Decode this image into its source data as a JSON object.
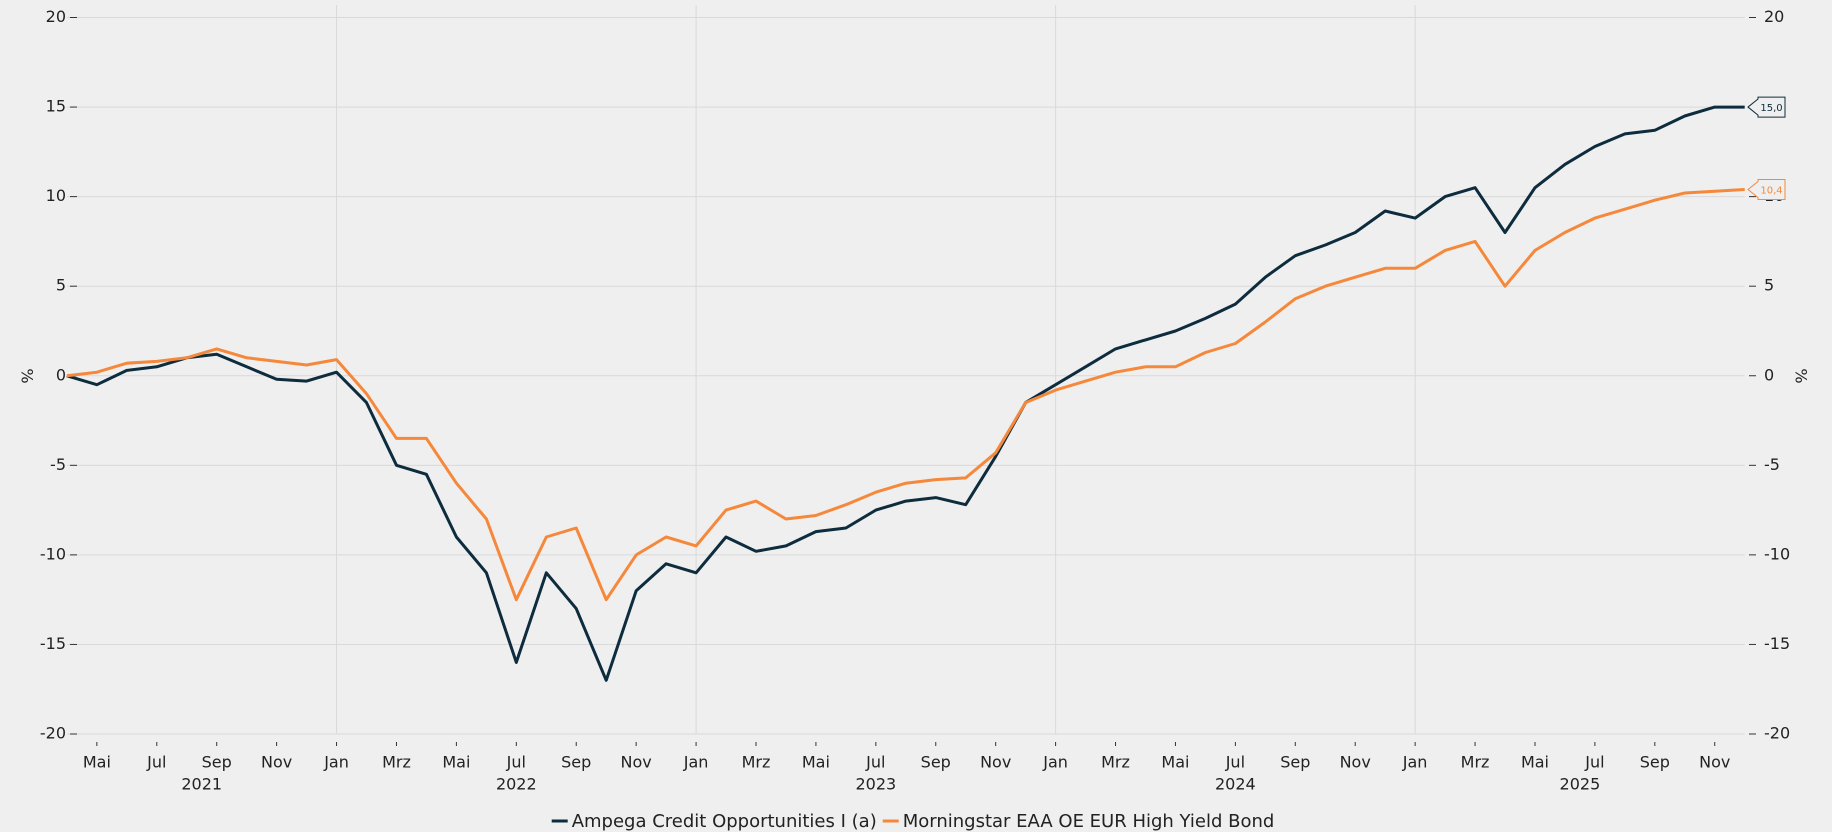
{
  "chart_data": {
    "type": "line",
    "ylabel": "%",
    "y2label": "%",
    "x": [
      "2021-04",
      "2021-05",
      "2021-06",
      "2021-07",
      "2021-08",
      "2021-09",
      "2021-10",
      "2021-11",
      "2021-12",
      "2022-01",
      "2022-02",
      "2022-03",
      "2022-04",
      "2022-05",
      "2022-06",
      "2022-07",
      "2022-08",
      "2022-09",
      "2022-10",
      "2022-11",
      "2022-12",
      "2023-01",
      "2023-02",
      "2023-03",
      "2023-04",
      "2023-05",
      "2023-06",
      "2023-07",
      "2023-08",
      "2023-09",
      "2023-10",
      "2023-11",
      "2023-12",
      "2024-01",
      "2024-02",
      "2024-03",
      "2024-04",
      "2024-05",
      "2024-06",
      "2024-07",
      "2024-08",
      "2024-09",
      "2024-10",
      "2024-11",
      "2024-12",
      "2025-01",
      "2025-02",
      "2025-03",
      "2025-04",
      "2025-05",
      "2025-06",
      "2025-07",
      "2025-08",
      "2025-09",
      "2025-10",
      "2025-11",
      "2025-12"
    ],
    "xlim": [
      "2021-04",
      "2025-12"
    ],
    "xticks": [
      {
        "value": "2021-05",
        "label": "Mai"
      },
      {
        "value": "2021-07",
        "label": "Jul"
      },
      {
        "value": "2021-09",
        "label": "Sep"
      },
      {
        "value": "2021-11",
        "label": "Nov"
      },
      {
        "value": "2022-01",
        "label": "Jan"
      },
      {
        "value": "2022-03",
        "label": "Mrz"
      },
      {
        "value": "2022-05",
        "label": "Mai"
      },
      {
        "value": "2022-07",
        "label": "Jul"
      },
      {
        "value": "2022-09",
        "label": "Sep"
      },
      {
        "value": "2022-11",
        "label": "Nov"
      },
      {
        "value": "2023-01",
        "label": "Jan"
      },
      {
        "value": "2023-03",
        "label": "Mrz"
      },
      {
        "value": "2023-05",
        "label": "Mai"
      },
      {
        "value": "2023-07",
        "label": "Jul"
      },
      {
        "value": "2023-09",
        "label": "Sep"
      },
      {
        "value": "2023-11",
        "label": "Nov"
      },
      {
        "value": "2024-01",
        "label": "Jan"
      },
      {
        "value": "2024-03",
        "label": "Mrz"
      },
      {
        "value": "2024-05",
        "label": "Mai"
      },
      {
        "value": "2024-07",
        "label": "Jul"
      },
      {
        "value": "2024-09",
        "label": "Sep"
      },
      {
        "value": "2024-11",
        "label": "Nov"
      },
      {
        "value": "2025-01",
        "label": "Jan"
      },
      {
        "value": "2025-03",
        "label": "Mrz"
      },
      {
        "value": "2025-05",
        "label": "Mai"
      },
      {
        "value": "2025-07",
        "label": "Jul"
      },
      {
        "value": "2025-09",
        "label": "Sep"
      },
      {
        "value": "2025-11",
        "label": "Nov"
      }
    ],
    "years": [
      "2021",
      "2022",
      "2023",
      "2024",
      "2025"
    ],
    "ylim": [
      -20,
      20
    ],
    "yticks": [
      -20,
      -15,
      -10,
      -5,
      0,
      5,
      10,
      15,
      20
    ],
    "y2lim": [
      -20,
      20
    ],
    "y2ticks": [
      -20,
      -15,
      -10,
      -5,
      0,
      5,
      10,
      15,
      20
    ],
    "grid": true,
    "legend": "bottom",
    "series": [
      {
        "name": "Ampega Credit Opportunities I (a)",
        "color": "#0d2c3d",
        "values": [
          0,
          -0.5,
          0.3,
          0.5,
          1.0,
          1.2,
          0.5,
          -0.2,
          -0.3,
          0.2,
          -1.5,
          -5,
          -5.5,
          -9,
          -11,
          -16,
          -11,
          -13,
          -17,
          -12,
          -10.5,
          -11,
          -9,
          -9.8,
          -9.5,
          -8.7,
          -8.5,
          -7.5,
          -7,
          -6.8,
          -7.2,
          -4.5,
          -1.5,
          -0.5,
          0.5,
          1.5,
          2,
          2.5,
          3.2,
          4,
          5.5,
          6.7,
          7.3,
          8,
          9.2,
          8.8,
          10,
          10.5,
          8,
          10.5,
          11.8,
          12.8,
          13.5,
          13.7,
          14.5,
          15.0,
          15.0
        ],
        "end_label": {
          "value": 15.0,
          "label": "15,0"
        }
      },
      {
        "name": "Morningstar EAA OE EUR High Yield Bond",
        "color": "#f5883a",
        "values": [
          0,
          0.2,
          0.7,
          0.8,
          1.0,
          1.5,
          1.0,
          0.8,
          0.6,
          0.9,
          -1,
          -3.5,
          -3.5,
          -6,
          -8,
          -12.5,
          -9,
          -8.5,
          -12.5,
          -10,
          -9,
          -9.5,
          -7.5,
          -7,
          -8,
          -7.8,
          -7.2,
          -6.5,
          -6,
          -5.8,
          -5.7,
          -4.3,
          -1.5,
          -0.8,
          -0.3,
          0.2,
          0.5,
          0.5,
          1.3,
          1.8,
          3,
          4.3,
          5,
          5.5,
          6,
          6,
          7,
          7.5,
          5,
          7,
          8,
          8.8,
          9.3,
          9.8,
          10.2,
          10.3,
          10.4
        ],
        "end_label": {
          "value": 10.4,
          "label": "10,4"
        }
      }
    ]
  }
}
